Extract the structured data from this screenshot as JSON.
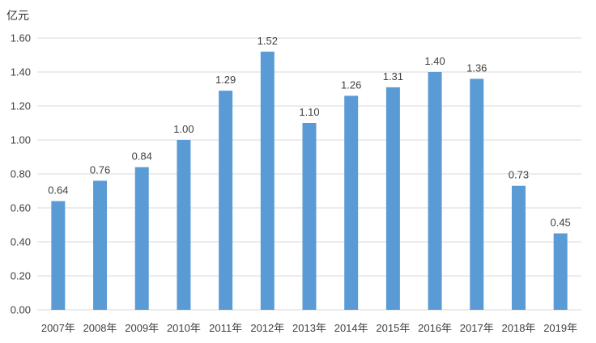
{
  "chart_data": {
    "type": "bar",
    "unit_label": "亿元",
    "categories": [
      "2007年",
      "2008年",
      "2009年",
      "2010年",
      "2011年",
      "2012年",
      "2013年",
      "2014年",
      "2015年",
      "2016年",
      "2017年",
      "2018年",
      "2019年"
    ],
    "values": [
      0.64,
      0.76,
      0.84,
      1.0,
      1.29,
      1.52,
      1.1,
      1.26,
      1.31,
      1.4,
      1.36,
      0.73,
      0.45
    ],
    "data_labels": [
      "0.64",
      "0.76",
      "0.84",
      "1.00",
      "1.29",
      "1.52",
      "1.10",
      "1.26",
      "1.31",
      "1.40",
      "1.36",
      "0.73",
      "0.45"
    ],
    "y_ticks": [
      "0.00",
      "0.20",
      "0.40",
      "0.60",
      "0.80",
      "1.00",
      "1.20",
      "1.40",
      "1.60"
    ],
    "ylim": [
      0,
      1.6
    ],
    "grid": true,
    "legend": "none",
    "bar_color": "#5B9BD5"
  }
}
